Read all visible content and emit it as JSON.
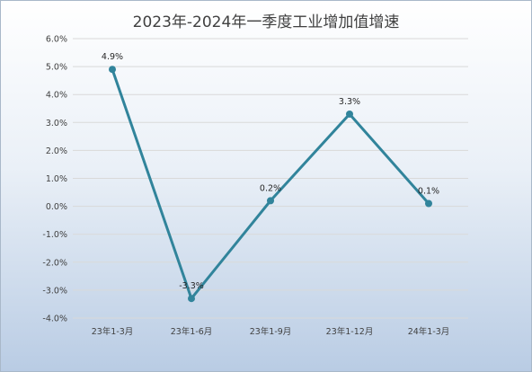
{
  "chart_data": {
    "type": "line",
    "title": "2023年-2024年一季度工业增加值增速",
    "categories": [
      "23年1-3月",
      "23年1-6月",
      "23年1-9月",
      "23年1-12月",
      "24年1-3月"
    ],
    "series": [
      {
        "values": [
          4.9,
          -3.3,
          0.2,
          3.3,
          0.1
        ],
        "data_labels": [
          "4.9%",
          "-3.3%",
          "0.2%",
          "3.3%",
          "0.1%"
        ]
      }
    ],
    "ylim": [
      -4.0,
      6.0
    ],
    "y_ticks": [
      6.0,
      5.0,
      4.0,
      3.0,
      2.0,
      1.0,
      0.0,
      -1.0,
      -2.0,
      -3.0,
      -4.0
    ],
    "y_tick_labels": [
      "6.0%",
      "5.0%",
      "4.0%",
      "3.0%",
      "2.0%",
      "1.0%",
      "0.0%",
      "-1.0%",
      "-2.0%",
      "-3.0%",
      "-4.0%"
    ],
    "grid": true,
    "legend": "none",
    "colors": {
      "line": "#31849b",
      "marker": "#31849b",
      "grid": "#d9d9d9"
    }
  }
}
